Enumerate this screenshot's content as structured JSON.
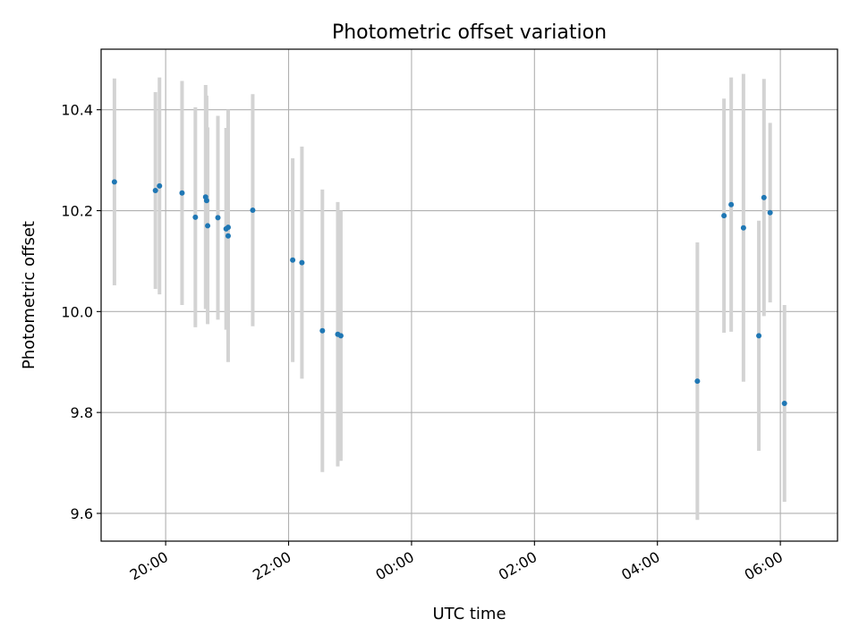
{
  "chart_data": {
    "type": "scatter",
    "title": "Photometric offset variation",
    "xlabel": "UTC time",
    "ylabel": "Photometric offset",
    "x_tick_labels": [
      "20:00",
      "22:00",
      "00:00",
      "02:00",
      "04:00",
      "06:00"
    ],
    "y_tick_labels": [
      "9.6",
      "9.8",
      "10.0",
      "10.2",
      "10.4"
    ],
    "x_ticks_hours": [
      20,
      22,
      24,
      26,
      28,
      30
    ],
    "y_ticks": [
      9.6,
      9.8,
      10.0,
      10.2,
      10.4
    ],
    "x_axis_hours": [
      18.95,
      30.93
    ],
    "ylim": [
      9.545,
      10.52
    ],
    "grid": true,
    "marker_color": "#1f77b4",
    "errorbar_color": "#d3d3d3",
    "points": [
      {
        "x": "19:10",
        "y": 10.257,
        "err": 0.205
      },
      {
        "x": "19:50",
        "y": 10.24,
        "err": 0.195
      },
      {
        "x": "19:54",
        "y": 10.249,
        "err": 0.215
      },
      {
        "x": "20:16",
        "y": 10.235,
        "err": 0.222
      },
      {
        "x": "20:29",
        "y": 10.187,
        "err": 0.218
      },
      {
        "x": "20:39",
        "y": 10.227,
        "err": 0.222
      },
      {
        "x": "20:40",
        "y": 10.22,
        "err": 0.208
      },
      {
        "x": "20:41",
        "y": 10.17,
        "err": 0.195
      },
      {
        "x": "20:51",
        "y": 10.186,
        "err": 0.202
      },
      {
        "x": "20:59",
        "y": 10.164,
        "err": 0.2
      },
      {
        "x": "21:01",
        "y": 10.167,
        "err": 0.233
      },
      {
        "x": "21:01",
        "y": 10.15,
        "err": 0.25
      },
      {
        "x": "21:25",
        "y": 10.201,
        "err": 0.23
      },
      {
        "x": "22:04",
        "y": 10.102,
        "err": 0.202
      },
      {
        "x": "22:13",
        "y": 10.097,
        "err": 0.23
      },
      {
        "x": "22:33",
        "y": 9.962,
        "err": 0.28
      },
      {
        "x": "22:48",
        "y": 9.955,
        "err": 0.262
      },
      {
        "x": "22:51",
        "y": 9.952,
        "err": 0.248
      },
      {
        "x": "04:39",
        "y": 9.862,
        "err": 0.275
      },
      {
        "x": "05:05",
        "y": 10.19,
        "err": 0.232
      },
      {
        "x": "05:12",
        "y": 10.212,
        "err": 0.252
      },
      {
        "x": "05:24",
        "y": 10.166,
        "err": 0.305
      },
      {
        "x": "05:39",
        "y": 9.952,
        "err": 0.228
      },
      {
        "x": "05:44",
        "y": 10.226,
        "err": 0.235
      },
      {
        "x": "05:50",
        "y": 10.196,
        "err": 0.178
      },
      {
        "x": "06:04",
        "y": 9.818,
        "err": 0.195
      }
    ]
  }
}
